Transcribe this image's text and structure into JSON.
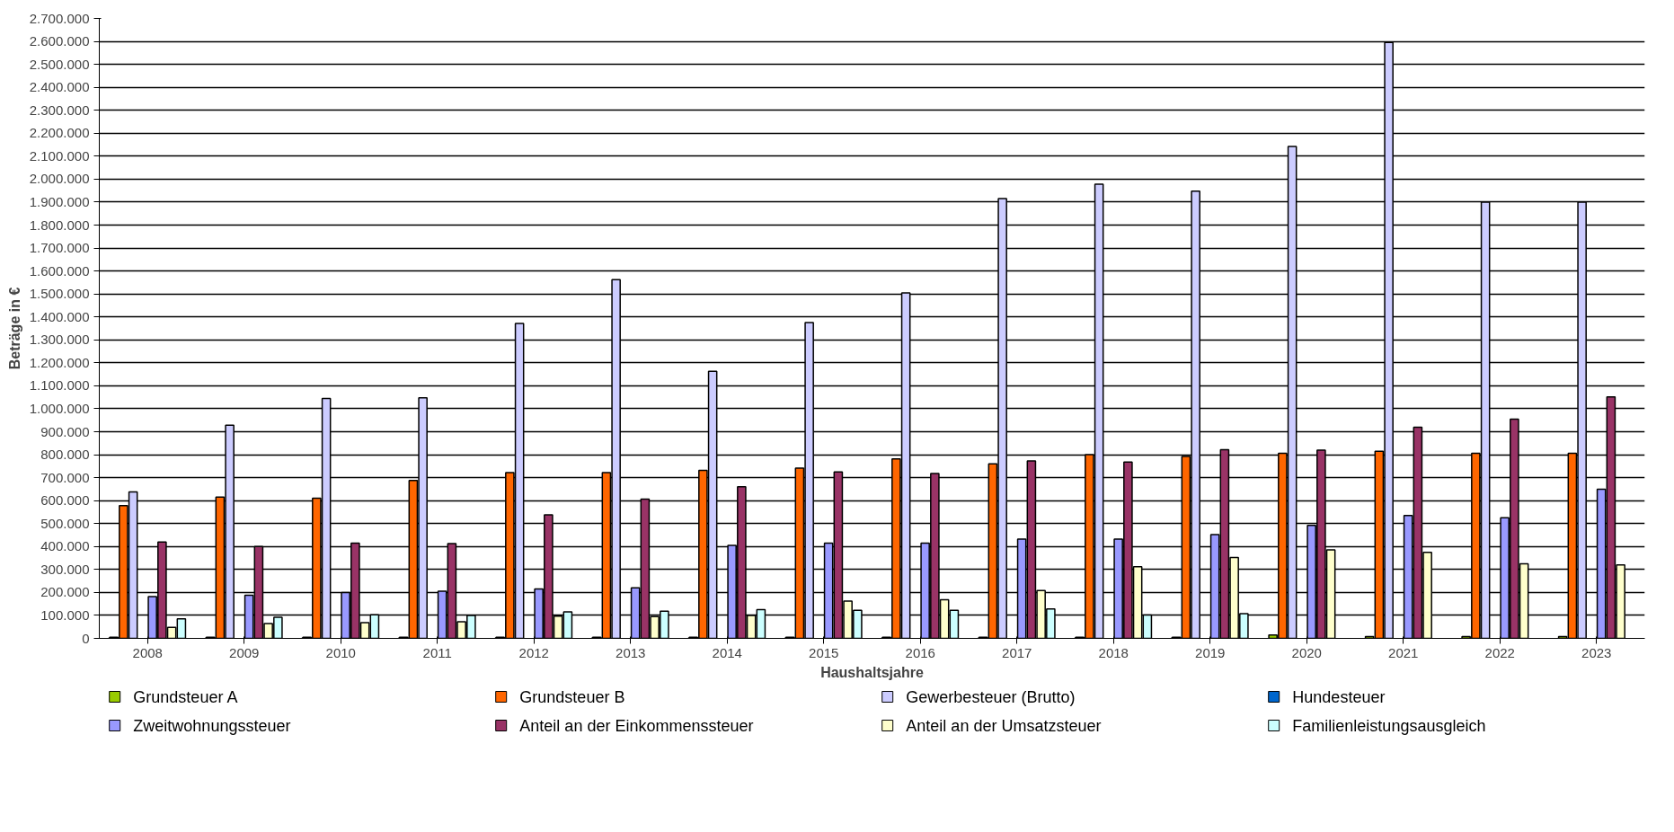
{
  "chart_data": {
    "type": "bar",
    "xlabel": "Haushaltsjahre",
    "ylabel": "Beträge in €",
    "categories": [
      "2008",
      "2009",
      "2010",
      "2011",
      "2012",
      "2013",
      "2014",
      "2015",
      "2016",
      "2017",
      "2018",
      "2019",
      "2020",
      "2021",
      "2022",
      "2023"
    ],
    "series": [
      {
        "name": "Grundsteuer A",
        "color": "#99cc00",
        "values": [
          5000,
          5000,
          5000,
          5000,
          5000,
          5000,
          5000,
          5000,
          5000,
          5000,
          5000,
          5000,
          15000,
          8000,
          8000,
          8000
        ]
      },
      {
        "name": "Grundsteuer B",
        "color": "#ff6600",
        "values": [
          578000,
          615000,
          610000,
          688000,
          722000,
          722000,
          732000,
          742000,
          782000,
          760000,
          800000,
          792000,
          806000,
          815000,
          806000,
          806000
        ]
      },
      {
        "name": "Gewerbesteuer (Brutto)",
        "color": "#ccccff",
        "values": [
          638000,
          928000,
          1045000,
          1048000,
          1372000,
          1562000,
          1163000,
          1375000,
          1505000,
          1915000,
          1978000,
          1948000,
          2142000,
          2595000,
          1900000,
          1900000
        ]
      },
      {
        "name": "Hundesteuer",
        "color": "#0066cc",
        "values": [
          null,
          null,
          null,
          null,
          null,
          null,
          null,
          null,
          null,
          null,
          null,
          null,
          null,
          null,
          null,
          null
        ]
      },
      {
        "name": "Zweitwohnungssteuer",
        "color": "#9999ff",
        "values": [
          182000,
          188000,
          200000,
          205000,
          215000,
          220000,
          405000,
          415000,
          415000,
          432000,
          432000,
          452000,
          492000,
          535000,
          525000,
          650000
        ]
      },
      {
        "name": "Anteil an der Einkommenssteuer",
        "color": "#993366",
        "values": [
          420000,
          400000,
          415000,
          413000,
          538000,
          607000,
          660000,
          725000,
          718000,
          773000,
          768000,
          822000,
          820000,
          920000,
          955000,
          1052000
        ]
      },
      {
        "name": "Anteil an der Umsatzsteuer",
        "color": "#ffffcc",
        "values": [
          48000,
          65000,
          68000,
          72000,
          97000,
          95000,
          100000,
          162000,
          168000,
          208000,
          312000,
          352000,
          385000,
          375000,
          325000,
          320000
        ]
      },
      {
        "name": "Familienleistungsausgleich",
        "color": "#ccffff",
        "values": [
          85000,
          92000,
          103000,
          100000,
          115000,
          118000,
          125000,
          122000,
          122000,
          128000,
          102000,
          108000,
          null,
          null,
          null,
          null
        ]
      }
    ],
    "ylim": [
      0,
      2700000
    ],
    "yticks": [
      0,
      {
        "value": 100000,
        "label": "100.000"
      },
      {
        "value": 200000,
        "label": "200.000"
      },
      {
        "value": 300000,
        "label": "300.000"
      },
      {
        "value": 400000,
        "label": "400.000"
      },
      {
        "value": 500000,
        "label": "500.000"
      },
      {
        "value": 600000,
        "label": "600.000"
      },
      {
        "value": 700000,
        "label": "700.000"
      },
      {
        "value": 800000,
        "label": "800.000"
      },
      {
        "value": 900000,
        "label": "900.000"
      },
      {
        "value": 1000000,
        "label": "1.000.000"
      },
      {
        "value": 1100000,
        "label": "1.100.000"
      },
      {
        "value": 1200000,
        "label": "1.200.000"
      },
      {
        "value": 1300000,
        "label": "1.300.000"
      },
      {
        "value": 1400000,
        "label": "1.400.000"
      },
      {
        "value": 1500000,
        "label": "1.500.000"
      },
      {
        "value": 1600000,
        "label": "1.600.000"
      },
      {
        "value": 1700000,
        "label": "1.700.000"
      },
      {
        "value": 1800000,
        "label": "1.800.000"
      },
      {
        "value": 1900000,
        "label": "1.900.000"
      },
      {
        "value": 2000000,
        "label": "2.000.000"
      },
      {
        "value": 2100000,
        "label": "2.100.000"
      },
      {
        "value": 2200000,
        "label": "2.200.000"
      },
      {
        "value": 2300000,
        "label": "2.300.000"
      },
      {
        "value": 2400000,
        "label": "2.400.000"
      },
      {
        "value": 2500000,
        "label": "2.500.000"
      },
      {
        "value": 2600000,
        "label": "2.600.000"
      },
      {
        "value": 2700000,
        "label": "2.700.000"
      }
    ],
    "grid": "y",
    "legend": "bottom"
  }
}
